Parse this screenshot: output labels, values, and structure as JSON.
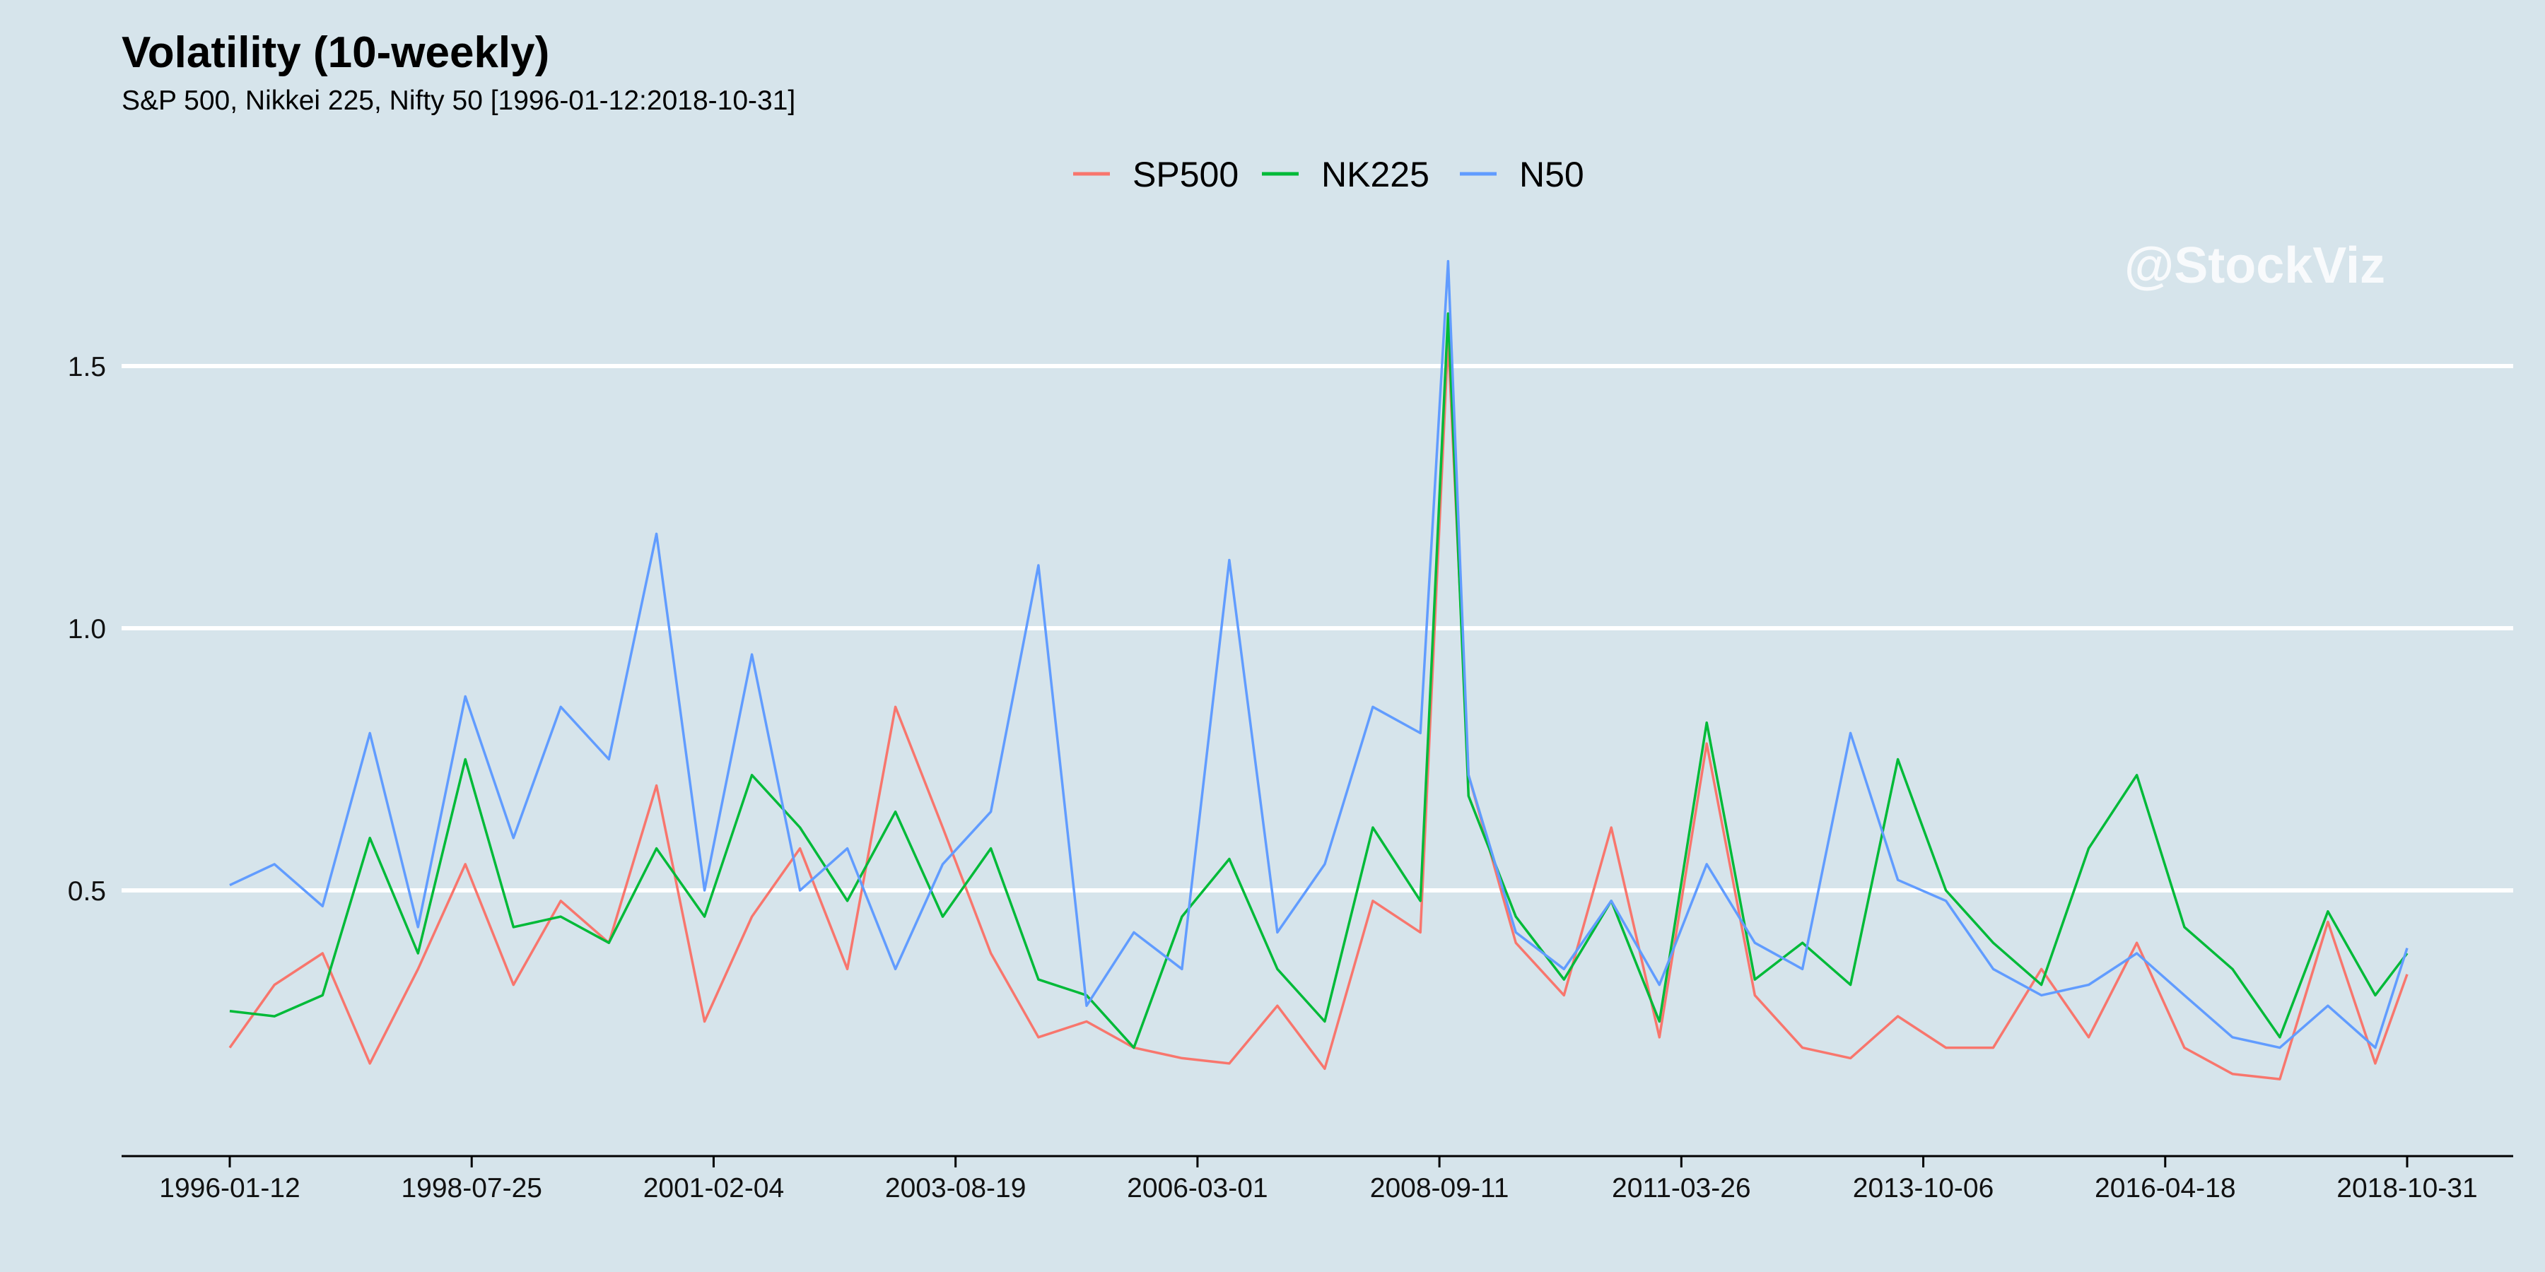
{
  "chart_data": {
    "type": "line",
    "title": "Volatility (10-weekly)",
    "subtitle": "S&P 500, Nikkei 225, Nifty 50 [1996-01-12:2018-10-31]",
    "watermark": "@StockViz",
    "xlabel": "",
    "ylabel": "",
    "x_tick_labels": [
      "1996-01-12",
      "1998-07-25",
      "2001-02-04",
      "2003-08-19",
      "2006-03-01",
      "2008-09-11",
      "2011-03-26",
      "2013-10-06",
      "2016-04-18",
      "2018-10-31"
    ],
    "y_ticks": [
      0.5,
      1.0,
      1.5
    ],
    "y_tick_labels": [
      "0.5",
      "1.0",
      "1.5"
    ],
    "xlim": [
      "1996-01-12",
      "2018-10-31"
    ],
    "ylim": [
      0.0,
      1.82
    ],
    "grid": "horizontal major",
    "legend_position": "top",
    "x": [
      "1996-01-12",
      "1996-07-01",
      "1997-01-01",
      "1997-07-01",
      "1998-01-01",
      "1998-07-01",
      "1999-01-01",
      "1999-07-01",
      "2000-01-01",
      "2000-07-01",
      "2001-01-01",
      "2001-07-01",
      "2002-01-01",
      "2002-07-01",
      "2003-01-01",
      "2003-07-01",
      "2004-01-01",
      "2004-07-01",
      "2005-01-01",
      "2005-07-01",
      "2006-01-01",
      "2006-07-01",
      "2007-01-01",
      "2007-07-01",
      "2008-01-01",
      "2008-07-01",
      "2008-10-15",
      "2009-01-01",
      "2009-07-01",
      "2010-01-01",
      "2010-07-01",
      "2011-01-01",
      "2011-07-01",
      "2012-01-01",
      "2012-07-01",
      "2013-01-01",
      "2013-07-01",
      "2014-01-01",
      "2014-07-01",
      "2015-01-01",
      "2015-07-01",
      "2016-01-01",
      "2016-07-01",
      "2017-01-01",
      "2017-07-01",
      "2018-01-01",
      "2018-07-01",
      "2018-10-31"
    ],
    "series": [
      {
        "name": "SP500",
        "color": "#f8766d",
        "values": [
          0.2,
          0.32,
          0.38,
          0.17,
          0.35,
          0.55,
          0.32,
          0.48,
          0.4,
          0.7,
          0.25,
          0.45,
          0.58,
          0.35,
          0.85,
          0.62,
          0.38,
          0.22,
          0.25,
          0.2,
          0.18,
          0.17,
          0.28,
          0.16,
          0.48,
          0.42,
          1.55,
          0.72,
          0.4,
          0.3,
          0.62,
          0.22,
          0.78,
          0.3,
          0.2,
          0.18,
          0.26,
          0.2,
          0.2,
          0.35,
          0.22,
          0.4,
          0.2,
          0.15,
          0.14,
          0.44,
          0.17,
          0.34
        ]
      },
      {
        "name": "NK225",
        "color": "#00ba38",
        "values": [
          0.27,
          0.26,
          0.3,
          0.6,
          0.38,
          0.75,
          0.43,
          0.45,
          0.4,
          0.58,
          0.45,
          0.72,
          0.62,
          0.48,
          0.65,
          0.45,
          0.58,
          0.33,
          0.3,
          0.2,
          0.45,
          0.56,
          0.35,
          0.25,
          0.62,
          0.48,
          1.6,
          0.68,
          0.45,
          0.33,
          0.48,
          0.25,
          0.82,
          0.33,
          0.4,
          0.32,
          0.75,
          0.5,
          0.4,
          0.32,
          0.58,
          0.72,
          0.43,
          0.35,
          0.22,
          0.46,
          0.3,
          0.38
        ]
      },
      {
        "name": "N50",
        "color": "#619cff",
        "values": [
          0.51,
          0.55,
          0.47,
          0.8,
          0.43,
          0.87,
          0.6,
          0.85,
          0.75,
          1.18,
          0.5,
          0.95,
          0.5,
          0.58,
          0.35,
          0.55,
          0.65,
          1.12,
          0.28,
          0.42,
          0.35,
          1.13,
          0.42,
          0.55,
          0.85,
          0.8,
          1.7,
          0.72,
          0.42,
          0.35,
          0.48,
          0.32,
          0.55,
          0.4,
          0.35,
          0.8,
          0.52,
          0.48,
          0.35,
          0.3,
          0.32,
          0.38,
          0.3,
          0.22,
          0.2,
          0.28,
          0.2,
          0.39
        ]
      }
    ]
  }
}
